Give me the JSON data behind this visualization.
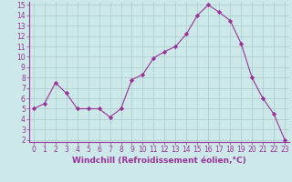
{
  "x": [
    0,
    1,
    2,
    3,
    4,
    5,
    6,
    7,
    8,
    9,
    10,
    11,
    12,
    13,
    14,
    15,
    16,
    17,
    18,
    19,
    20,
    21,
    22,
    23
  ],
  "y": [
    5.0,
    5.5,
    7.5,
    6.5,
    5.0,
    5.0,
    5.0,
    4.2,
    5.0,
    7.8,
    8.3,
    9.9,
    10.5,
    11.0,
    12.2,
    14.0,
    15.0,
    14.3,
    13.5,
    11.3,
    8.0,
    6.0,
    4.5,
    2.0
  ],
  "line_color": "#993399",
  "marker": "D",
  "marker_size": 2.2,
  "bg_color": "#cce8e8",
  "grid_color": "#aacccc",
  "xlabel": "Windchill (Refroidissement éolien,°C)",
  "xlabel_color": "#993399",
  "ylim_min": 1.8,
  "ylim_max": 15.3,
  "xlim_min": -0.4,
  "xlim_max": 23.4,
  "yticks": [
    2,
    3,
    4,
    5,
    6,
    7,
    8,
    9,
    10,
    11,
    12,
    13,
    14,
    15
  ],
  "xticks": [
    0,
    1,
    2,
    3,
    4,
    5,
    6,
    7,
    8,
    9,
    10,
    11,
    12,
    13,
    14,
    15,
    16,
    17,
    18,
    19,
    20,
    21,
    22,
    23
  ],
  "tick_color": "#993399",
  "spine_color": "#993399",
  "axis_bg": "#cce8e8",
  "tick_fontsize": 5.5,
  "xlabel_fontsize": 6.5
}
